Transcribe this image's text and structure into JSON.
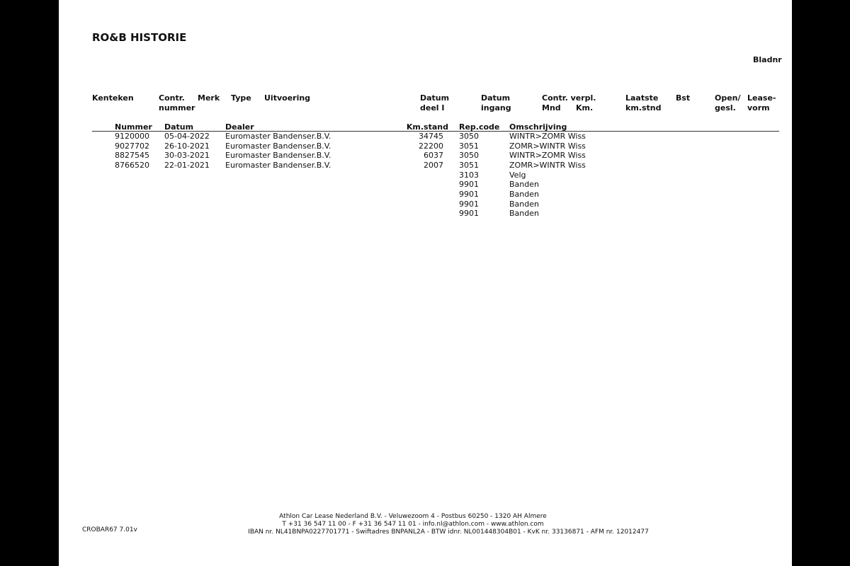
{
  "title": "RO&B HISTORIE",
  "bladnr_label": "Bladnr",
  "header": {
    "kenteken": "Kenteken",
    "contr1": "Contr.",
    "contr2": "nummer",
    "merk": "Merk",
    "type": "Type",
    "uitvoering": "Uitvoering",
    "datum_deel1": "Datum",
    "datum_deel2": "deel I",
    "datum_ingang1": "Datum",
    "datum_ingang2": "ingang",
    "contr_verpl": "Contr. verpl.",
    "mnd": "Mnd",
    "km": "Km.",
    "laatste1": "Laatste",
    "laatste2": "km.stnd",
    "bst": "Bst",
    "open1": "Open/",
    "open2": "gesl.",
    "lease1": "Lease-",
    "lease2": "vorm"
  },
  "subheader": {
    "nummer": "Nummer",
    "datum": "Datum",
    "dealer": "Dealer",
    "kmstand": "Km.stand",
    "repcode": "Rep.code",
    "omschrijving": "Omschrijving"
  },
  "rows": [
    {
      "nummer": "9120000",
      "datum": "05-04-2022",
      "dealer": "Euromaster Bandenser.B.V.",
      "km": "34745",
      "rep": "3050",
      "omschr": "WINTR>ZOMR Wiss"
    },
    {
      "nummer": "9027702",
      "datum": "26-10-2021",
      "dealer": "Euromaster Bandenser.B.V.",
      "km": "22200",
      "rep": "3051",
      "omschr": "ZOMR>WINTR Wiss"
    },
    {
      "nummer": "8827545",
      "datum": "30-03-2021",
      "dealer": "Euromaster Bandenser.B.V.",
      "km": "6037",
      "rep": "3050",
      "omschr": "WINTR>ZOMR Wiss"
    },
    {
      "nummer": "8766520",
      "datum": "22-01-2021",
      "dealer": "Euromaster Bandenser.B.V.",
      "km": "2007",
      "rep": "3051",
      "omschr": "ZOMR>WINTR Wiss"
    },
    {
      "rep": "3103",
      "omschr": "Velg"
    },
    {
      "rep": "9901",
      "omschr": "Banden"
    },
    {
      "rep": "9901",
      "omschr": "Banden"
    },
    {
      "rep": "9901",
      "omschr": "Banden"
    },
    {
      "rep": "9901",
      "omschr": "Banden"
    }
  ],
  "footer": {
    "code": "CROBAR67 7.01v",
    "line1": "Athlon Car Lease Nederland B.V. - Veluwezoom 4 - Postbus 60250 - 1320 AH  Almere",
    "line2": "T +31 36 547 11 00 - F +31 36 547 11 01 - info.nl@athlon.com - www.athlon.com",
    "line3": "IBAN nr. NL41BNPA0227701771 - Swiftadres BNPANL2A - BTW idnr. NL001448304B01 - KvK nr. 33136871 - AFM nr. 12012477"
  }
}
